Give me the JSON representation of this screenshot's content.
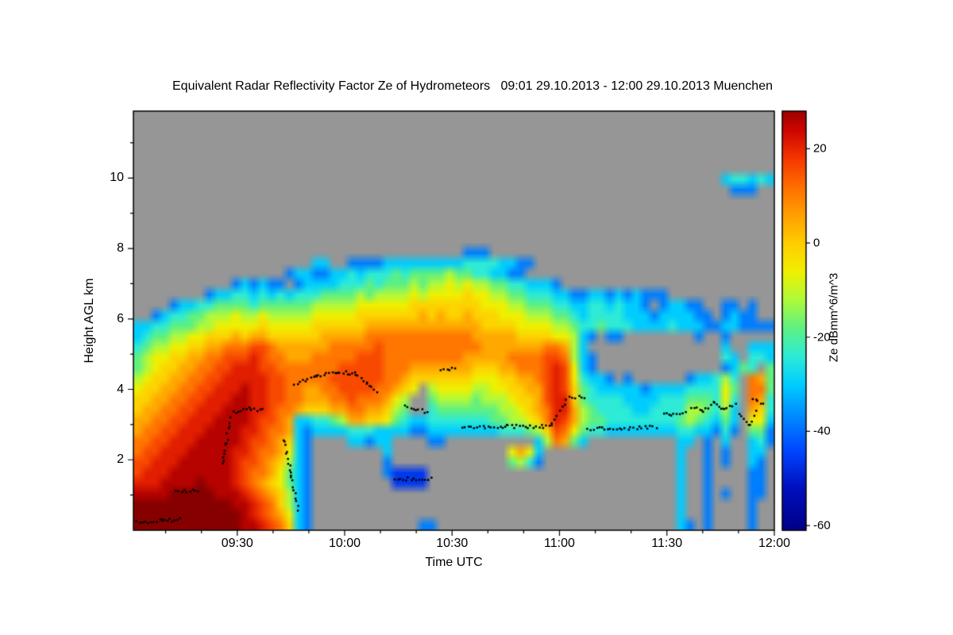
{
  "title": "Equivalent Radar Reflectivity Factor Ze of Hydrometeors   09:01 29.10.2013 - 12:00 29.10.2013 Muenchen",
  "axes": {
    "x_label": "Time UTC",
    "y_label": "Height AGL km",
    "x_ticks": [
      {
        "minutes": 30,
        "label": "09:30"
      },
      {
        "minutes": 60,
        "label": "10:00"
      },
      {
        "minutes": 90,
        "label": "10:30"
      },
      {
        "minutes": 120,
        "label": "11:00"
      },
      {
        "minutes": 150,
        "label": "11:30"
      },
      {
        "minutes": 180,
        "label": "12:00"
      }
    ],
    "x_minor_step_minutes": 10,
    "y_ticks": [
      2,
      4,
      6,
      8,
      10
    ],
    "y_minor_ticks": [
      1,
      3,
      5,
      7,
      9,
      11
    ]
  },
  "colorbar": {
    "label": "Ze dBmm^6/m^3",
    "ticks": [
      20,
      0,
      -20,
      -40,
      -60
    ],
    "range": [
      -61,
      28
    ],
    "stops": [
      [
        -61,
        [
          0,
          0,
          135
        ]
      ],
      [
        -52,
        [
          0,
          15,
          190
        ]
      ],
      [
        -44,
        [
          0,
          70,
          255
        ]
      ],
      [
        -36,
        [
          0,
          145,
          255
        ]
      ],
      [
        -30,
        [
          0,
          205,
          255
        ]
      ],
      [
        -24,
        [
          45,
          235,
          215
        ]
      ],
      [
        -18,
        [
          95,
          240,
          130
        ]
      ],
      [
        -12,
        [
          175,
          250,
          60
        ]
      ],
      [
        -6,
        [
          240,
          240,
          0
        ]
      ],
      [
        0,
        [
          255,
          205,
          0
        ]
      ],
      [
        6,
        [
          255,
          160,
          0
        ]
      ],
      [
        12,
        [
          255,
          110,
          0
        ]
      ],
      [
        18,
        [
          245,
          55,
          0
        ]
      ],
      [
        24,
        [
          205,
          5,
          0
        ]
      ],
      [
        30,
        [
          135,
          0,
          0
        ]
      ]
    ]
  },
  "chart_data": {
    "type": "heatmap",
    "title": "Equivalent Radar Reflectivity Factor Ze of Hydrometeors   09:01 29.10.2013 - 12:00 29.10.2013 Muenchen",
    "xlabel": "Time UTC",
    "ylabel": "Height AGL km",
    "value_label": "Ze dBmm^6/m^3",
    "time_range_minutes": [
      1,
      180
    ],
    "time_origin": "09:00 UTC 29.10.2013",
    "height_range_km": [
      0,
      11.9
    ],
    "value_range_dB": [
      -61,
      28
    ],
    "no_data_color": "#969696",
    "grid_cols": 72,
    "grid_rows": 40,
    "levels_dB": {
      ".": null,
      "1": -55,
      "2": -46,
      "3": -38,
      "4": -30,
      "5": -24,
      "6": -18,
      "7": -12,
      "8": -6,
      "9": -1,
      "a": 5,
      "b": 11,
      "c": 16,
      "d": 21,
      "e": 26,
      "f": 30
    },
    "grid_rows_top_to_bottom": [
      "........................................................................",
      "........................................................................",
      "........................................................................",
      "........................................................................",
      "........................................................................",
      "........................................................................",
      "..................................................................455454",
      "...................................................................333..",
      "........................................................................",
      "........................................................................",
      "........................................................................",
      "........................................................................",
      "........................................................................",
      ".....................................333................................",
      "....................44..333344444444455554433...........................",
      ".................344334454555656666766554433............................",
      "...........343433.344445556566676778787766554443........................",
      "........3445545454555666676777787888898877665554433443434333............",
      "....344556666566666677777888888999999998887766655445545443.34433..33.3..",
      "..345566777877877777888889999999a9a99a999888777665455554443444433.3433..",
      "44556667788888988888999999aaaaaaaaaaaaa999988887765565554444544433443333",
      "45667788999a9aa999999aaaaabbbbbbbbbbbbaaaaa999988743.33........3..3.....",
      "56778899aabbbccbaaaaaabbbbbcbbbbbbbbbbbaaaaaaabba74...............4..444",
      "678899aabbcccdcbbaaabbbbbcccbbbbbbbbbaaaaabbbbccb743..............54.554",
      "67899aabbccdddccbbbbbbbcccccbbbaaaaaaa999aabbbcdc843..............3465.664",
      "7899aabbccdddddccbbbbbccccccbba999999988899aabcdc85443.3......344575.ba6",
      "899aabbccdddeddccbbaabbccccbba98.78888778899aacdc9654444434444555586.bb6",
      "99aabbccdddeeddccbbaaabbcbbba87..677776777899acdd9655554444555666585.ba5",
      "9aabbccdddeeeddcbba999aabbaa976..566666667789abdda765555445555776574.a95",
      "aabbccdddeeeedccba445567aa99865445555555667789bdca766555555556765464.884",
      "abbccdddeeeeddcbba43444455544443344444444555679cb8655444444445544353.663",
      "bbccdddeeeeedccba943....44344....33..........47ba64..........44.3.4..453",
      "bccdddeeeeeddcbba843........4.............8a84...............4..3.3..44.",
      "ccdddeeeeeedccba9743........3.............6753...............4..3.3..43.",
      "cdddeeeeeeedcbba8643........32222............................4..3....33.",
      "dddeeeefeeedcba98643.........2222............................4..3....33.",
      "eeeefffffeeedcba9743.........................................4..3.3..33.",
      "fffffffffffeedcb9743.........................................4..3....3..",
      "ffffffffffffedcba843.........................................4..3....3..",
      "ffffffffffffeedcb943............33...........................43.3....3.."
    ],
    "dot_tracks_minutes_km": [
      [
        [
          2,
          0.22
        ],
        [
          9,
          0.27
        ],
        [
          14,
          0.3
        ]
      ],
      [
        [
          13,
          1.08
        ],
        [
          19,
          1.14
        ]
      ],
      [
        [
          26,
          1.85
        ],
        [
          27,
          2.5
        ],
        [
          28,
          3.2
        ]
      ],
      [
        [
          29,
          3.35
        ],
        [
          34,
          3.46
        ],
        [
          37,
          3.4
        ]
      ],
      [
        [
          43,
          2.6
        ],
        [
          45,
          1.6
        ],
        [
          47,
          0.6
        ]
      ],
      [
        [
          46,
          4.15
        ],
        [
          52,
          4.35
        ],
        [
          58,
          4.5
        ],
        [
          63,
          4.45
        ],
        [
          66,
          4.2
        ],
        [
          69,
          3.95
        ]
      ],
      [
        [
          74,
          1.45
        ],
        [
          84,
          1.48
        ]
      ],
      [
        [
          77,
          3.55
        ],
        [
          83,
          3.35
        ]
      ],
      [
        [
          87,
          4.55
        ],
        [
          91,
          4.6
        ]
      ],
      [
        [
          93,
          2.92
        ],
        [
          105,
          2.95
        ],
        [
          118,
          2.95
        ]
      ],
      [
        [
          118,
          3.0
        ],
        [
          122,
          3.7
        ]
      ],
      [
        [
          123,
          3.75
        ],
        [
          127,
          3.8
        ]
      ],
      [
        [
          128,
          2.88
        ],
        [
          147,
          2.92
        ]
      ],
      [
        [
          149,
          3.28
        ],
        [
          155,
          3.33
        ]
      ],
      [
        [
          157,
          3.5
        ],
        [
          160,
          3.38
        ],
        [
          163,
          3.6
        ],
        [
          166,
          3.42
        ],
        [
          169,
          3.55
        ]
      ],
      [
        [
          170,
          3.3
        ],
        [
          173,
          3.0
        ],
        [
          175,
          3.35
        ]
      ],
      [
        [
          174,
          3.7
        ],
        [
          177,
          3.62
        ]
      ]
    ]
  },
  "colors": {
    "background": "#ffffff",
    "axis": "#000000",
    "no_data_gray": "#969696",
    "dots": "#000000"
  }
}
